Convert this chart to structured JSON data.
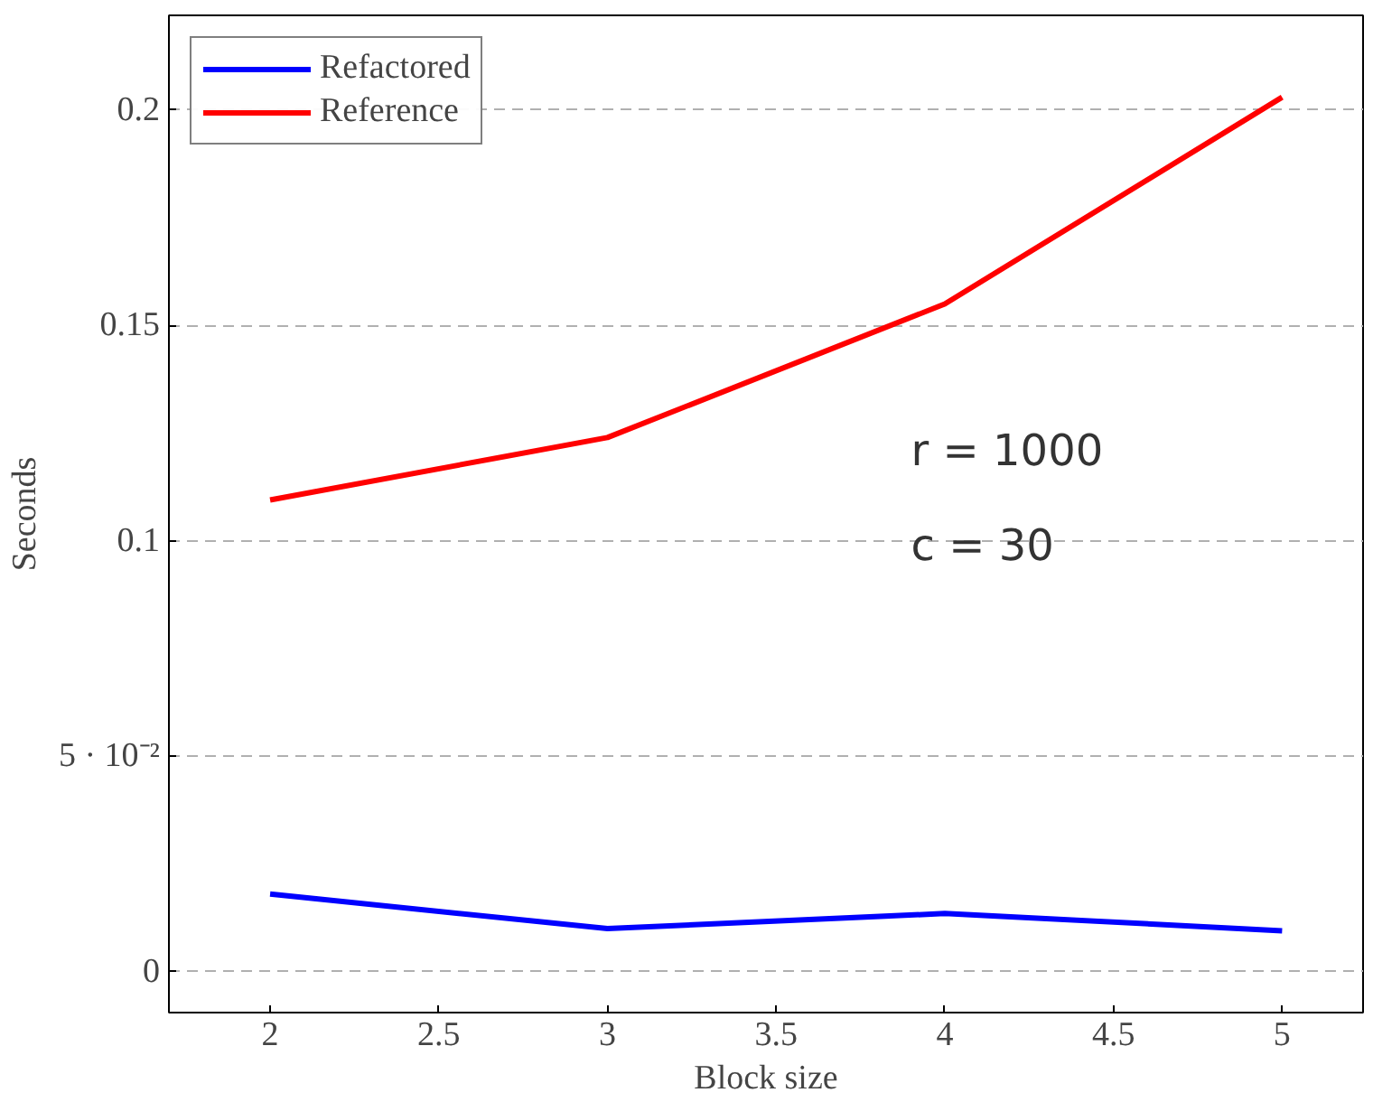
{
  "chart_data": {
    "type": "line",
    "xlabel": "Block size",
    "ylabel": "Seconds",
    "x": [
      2,
      3,
      4,
      5
    ],
    "series": [
      {
        "name": "Refactored",
        "color": "#0000ff",
        "values": [
          0.018,
          0.01,
          0.0135,
          0.0095
        ]
      },
      {
        "name": "Reference",
        "color": "#ff0000",
        "values": [
          0.1095,
          0.124,
          0.155,
          0.203
        ]
      }
    ],
    "xlim": [
      1.7,
      5.24
    ],
    "ylim": [
      -0.0095,
      0.222
    ],
    "xticks": [
      2,
      2.5,
      3,
      3.5,
      4,
      4.5,
      5
    ],
    "yticks": [
      0,
      {
        "value": 0.05,
        "label": "5 · 10⁻²"
      },
      0.1,
      0.15,
      0.2
    ],
    "annotations": [
      "r = 1000",
      "c = 30"
    ],
    "grid": "y",
    "legend": "top left",
    "line_style": "solid",
    "marker": "none"
  }
}
